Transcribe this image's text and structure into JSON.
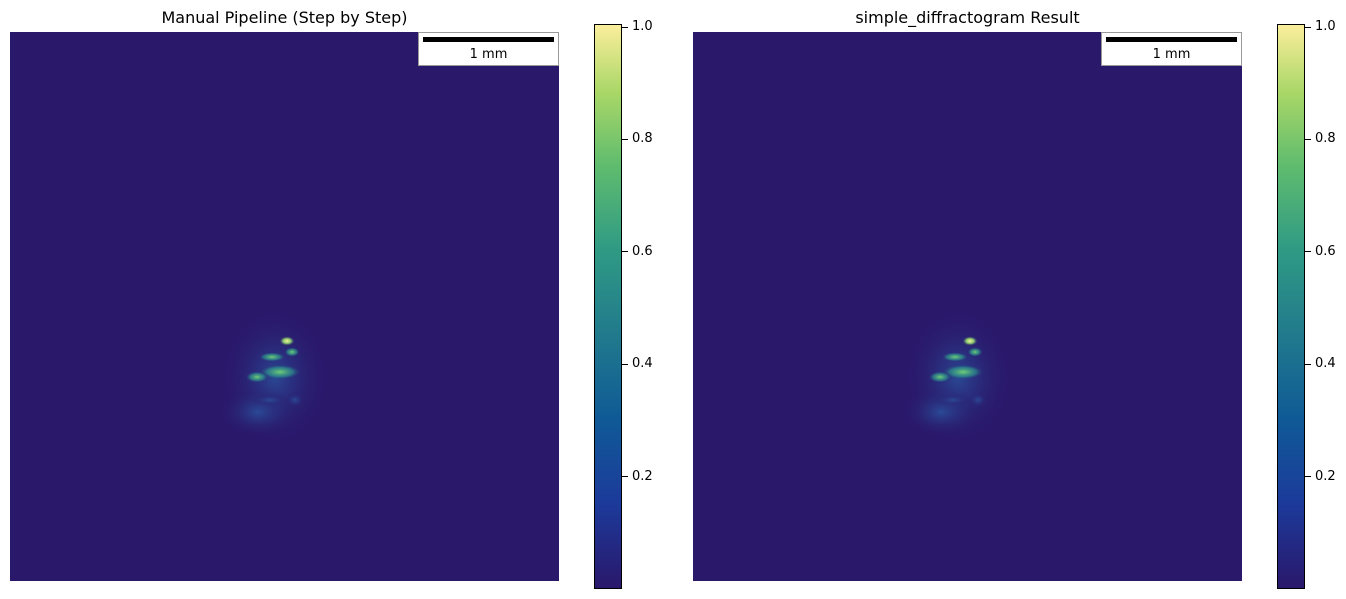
{
  "chart_data": [
    {
      "type": "heatmap",
      "title": "Manual Pipeline (Step by Step)",
      "scalebar": {
        "label": "1 mm"
      },
      "colormap": "haline",
      "colorbar": {
        "range": [
          0.0,
          1.0
        ],
        "ticks": [
          "0.2",
          "0.4",
          "0.6",
          "0.8",
          "1.0"
        ]
      },
      "peak_value": 1.0,
      "background_value": 0.0,
      "axes": "off"
    },
    {
      "type": "heatmap",
      "title": "simple_diffractogram Result",
      "scalebar": {
        "label": "1 mm"
      },
      "colormap": "haline",
      "colorbar": {
        "range": [
          0.0,
          1.0
        ],
        "ticks": [
          "0.2",
          "0.4",
          "0.6",
          "0.8",
          "1.0"
        ]
      },
      "peak_value": 1.0,
      "background_value": 0.0,
      "axes": "off"
    }
  ],
  "colors": {
    "background": "#2a186b",
    "low": "#2a186b",
    "mid": "#2a8c8c",
    "high": "#fbee9c"
  }
}
